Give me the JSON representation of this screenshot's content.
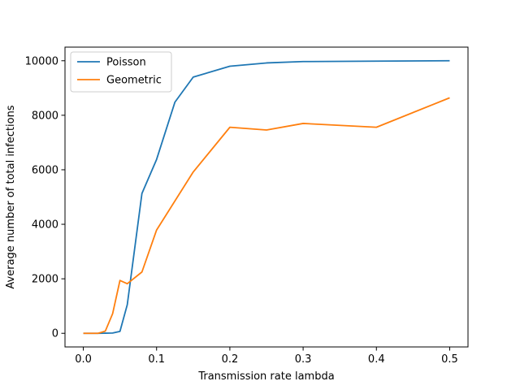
{
  "chart_data": {
    "type": "line",
    "title": "",
    "xlabel": "Transmission rate lambda",
    "ylabel": "Average number of total infections",
    "xlim": [
      -0.025,
      0.525
    ],
    "ylim": [
      -500,
      10500
    ],
    "xticks": [
      0.0,
      0.1,
      0.2,
      0.3,
      0.4,
      0.5
    ],
    "xtick_labels": [
      "0.0",
      "0.1",
      "0.2",
      "0.3",
      "0.4",
      "0.5"
    ],
    "yticks": [
      0,
      2000,
      4000,
      6000,
      8000,
      10000
    ],
    "ytick_labels": [
      "0",
      "2000",
      "4000",
      "6000",
      "8000",
      "10000"
    ],
    "grid": false,
    "legend_position": "top-left",
    "series": [
      {
        "name": "Poisson",
        "color": "#1f77b4",
        "x": [
          0.0,
          0.01,
          0.02,
          0.03,
          0.04,
          0.05,
          0.06,
          0.08,
          0.1,
          0.125,
          0.15,
          0.2,
          0.25,
          0.3,
          0.4,
          0.5
        ],
        "y": [
          0,
          0,
          0,
          5,
          10,
          70,
          1050,
          5130,
          6380,
          8480,
          9400,
          9800,
          9920,
          9970,
          9985,
          10000
        ]
      },
      {
        "name": "Geometric",
        "color": "#ff7f0e",
        "x": [
          0.0,
          0.01,
          0.02,
          0.03,
          0.04,
          0.05,
          0.06,
          0.08,
          0.1,
          0.15,
          0.2,
          0.25,
          0.3,
          0.4,
          0.5
        ],
        "y": [
          0,
          0,
          0,
          80,
          720,
          1940,
          1820,
          2250,
          3790,
          5920,
          7560,
          7460,
          7700,
          7560,
          8640
        ]
      }
    ]
  }
}
